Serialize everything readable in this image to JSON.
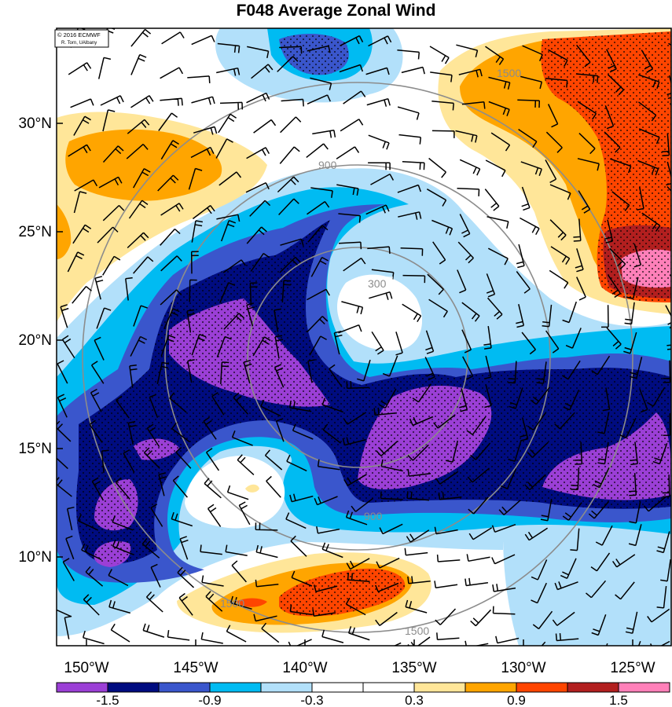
{
  "title": "F048 Average Zonal Wind",
  "credit": {
    "line1": "© 2016 ECMWF",
    "line2": "R. Torn, UAlbany"
  },
  "axes": {
    "x_ticks": [
      "150°W",
      "145°W",
      "140°W",
      "135°W",
      "130°W",
      "125°W"
    ],
    "y_ticks": [
      "30°N",
      "25°N",
      "20°N",
      "15°N",
      "10°N"
    ]
  },
  "colorbar": {
    "colors": [
      "#9b3fd6",
      "#000c80",
      "#3a56cc",
      "#00bbf2",
      "#b2e0fa",
      "#ffffff",
      "#ffffff",
      "#ffe699",
      "#ffa500",
      "#ff4500",
      "#b21f1f",
      "#ff80b9"
    ],
    "labels": [
      "-1.5",
      "-0.9",
      "-0.3",
      "0.3",
      "0.9",
      "1.5"
    ]
  },
  "range_rings": {
    "labels": [
      "300",
      "900",
      "1500"
    ],
    "color": "#8c8c8c"
  },
  "palette": {
    "purple": "#9b3fd6",
    "navy": "#000c80",
    "blue": "#3a56cc",
    "cyan": "#00bbf2",
    "lightblue": "#b2e0fa",
    "yellow": "#ffe699",
    "orange": "#ffa500",
    "red": "#ff4500",
    "darkred": "#b21f1f",
    "pink": "#ff80b9"
  }
}
